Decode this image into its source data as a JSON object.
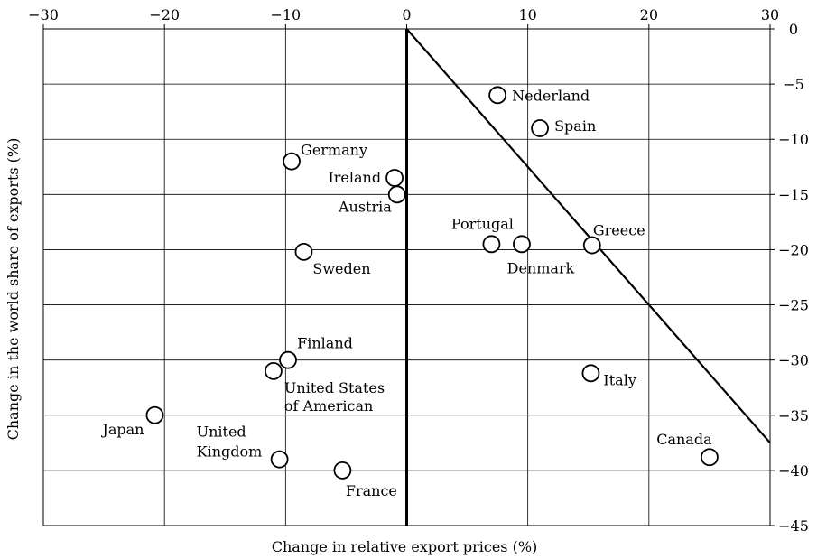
{
  "chart_data": {
    "type": "scatter",
    "xlabel": "Change in relative export prices (%)",
    "ylabel": "Change in the world share of exports (%)",
    "xlim": [
      -30,
      30
    ],
    "ylim": [
      -45,
      0
    ],
    "x_ticks": [
      -30,
      -20,
      -10,
      0,
      10,
      20,
      30
    ],
    "y_ticks": [
      0,
      -5,
      -10,
      -15,
      -20,
      -25,
      -30,
      -35,
      -40,
      -45
    ],
    "grid": true,
    "x_tick_position": "top",
    "y_tick_position": "right",
    "points": [
      {
        "label": "Nederland",
        "x": 7.5,
        "y": -6.0
      },
      {
        "label": "Spain",
        "x": 11.0,
        "y": -9.0
      },
      {
        "label": "Germany",
        "x": -9.5,
        "y": -12.0
      },
      {
        "label": "Ireland",
        "x": -1.0,
        "y": -13.5
      },
      {
        "label": "Austria",
        "x": -0.8,
        "y": -15.0
      },
      {
        "label": "Portugal",
        "x": 7.0,
        "y": -19.5
      },
      {
        "label": "Denmark",
        "x": 9.5,
        "y": -19.5
      },
      {
        "label": "Greece",
        "x": 15.3,
        "y": -19.6
      },
      {
        "label": "Sweden",
        "x": -8.5,
        "y": -20.2
      },
      {
        "label": "Finland",
        "x": -9.8,
        "y": -30.0
      },
      {
        "label": "United States of American",
        "x": -11.0,
        "y": -31.0
      },
      {
        "label": "Italy",
        "x": 15.2,
        "y": -31.2
      },
      {
        "label": "Japan",
        "x": -20.8,
        "y": -35.0
      },
      {
        "label": "United Kingdom",
        "x": -10.5,
        "y": -39.0
      },
      {
        "label": "France",
        "x": -5.3,
        "y": -40.0
      },
      {
        "label": "Canada",
        "x": 25.0,
        "y": -38.8
      }
    ],
    "reference_lines": [
      {
        "kind": "vertical",
        "x": 0,
        "y_from": 0,
        "y_to": -45
      },
      {
        "kind": "segment",
        "x1": 0,
        "y1": 0,
        "x2": 30,
        "y2": -37.5
      }
    ]
  }
}
